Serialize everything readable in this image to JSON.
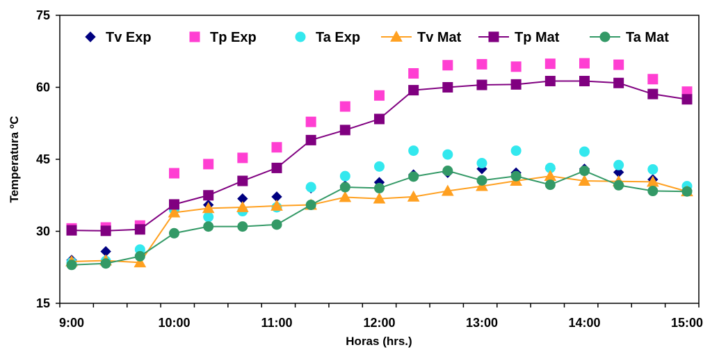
{
  "chart_data": {
    "type": "line",
    "xlabel": "Horas (hrs.)",
    "ylabel": "Temperatura ºC",
    "x_tick_labels": [
      "9:00",
      "10:00",
      "11:00",
      "12:00",
      "13:00",
      "14:00",
      "15:00"
    ],
    "y_tick_labels": [
      "15",
      "30",
      "45",
      "60",
      "75"
    ],
    "y_ticks": [
      15,
      30,
      45,
      60,
      75
    ],
    "ylim": [
      15,
      75
    ],
    "xlim": [
      0,
      18
    ],
    "x_major_ticks": [
      0,
      3,
      6,
      9,
      12,
      15,
      18
    ],
    "grid": false,
    "legend_position": "top",
    "x": [
      0,
      1,
      2,
      3,
      4,
      5,
      6,
      7,
      8,
      9,
      10,
      11,
      12,
      13,
      14,
      15,
      16,
      17,
      18
    ],
    "series": [
      {
        "name": "Tv Exp",
        "style": "markers",
        "marker": "diamond",
        "color": "#000080",
        "values": [
          24.0,
          25.8,
          25.0,
          34.8,
          35.5,
          36.8,
          37.2,
          39.0,
          39.5,
          40.2,
          41.8,
          42.2,
          43.0,
          42.2,
          43.0,
          43.0,
          42.3,
          40.8,
          38.5
        ]
      },
      {
        "name": "Tp Exp",
        "style": "markers",
        "marker": "square",
        "color": "#FF3FD2",
        "values": [
          30.6,
          30.8,
          31.2,
          42.1,
          44.0,
          45.3,
          47.5,
          52.8,
          56.0,
          58.3,
          62.9,
          64.6,
          64.8,
          64.3,
          64.9,
          65.0,
          64.7,
          61.7,
          59.1
        ]
      },
      {
        "name": "Ta Exp",
        "style": "markers",
        "marker": "circle",
        "color": "#33E8EE",
        "values": [
          23.5,
          23.8,
          26.2,
          34.5,
          33.0,
          34.2,
          35.0,
          39.2,
          41.5,
          43.5,
          46.8,
          46.0,
          44.2,
          46.8,
          43.2,
          46.6,
          43.8,
          42.9,
          39.4
        ]
      },
      {
        "name": "Tv Mat",
        "style": "line",
        "marker": "triangle",
        "color": "#FFA020",
        "values": [
          23.7,
          23.9,
          23.5,
          33.9,
          34.8,
          35.0,
          35.3,
          35.5,
          37.1,
          36.8,
          37.2,
          38.4,
          39.4,
          40.5,
          41.5,
          40.5,
          40.4,
          40.3,
          38.3
        ]
      },
      {
        "name": "Tp Mat",
        "style": "line",
        "marker": "square",
        "color": "#800080",
        "values": [
          30.2,
          30.1,
          30.4,
          35.6,
          37.5,
          40.5,
          43.2,
          49.0,
          51.1,
          53.4,
          59.4,
          60.0,
          60.5,
          60.6,
          61.3,
          61.3,
          60.9,
          58.6,
          57.5
        ]
      },
      {
        "name": "Ta Mat",
        "style": "line",
        "marker": "circle",
        "color": "#339966",
        "values": [
          23.0,
          23.3,
          24.8,
          29.6,
          31.0,
          31.0,
          31.4,
          35.5,
          39.2,
          39.0,
          41.4,
          42.6,
          40.6,
          41.5,
          39.7,
          42.6,
          39.6,
          38.4,
          38.3
        ]
      }
    ]
  }
}
